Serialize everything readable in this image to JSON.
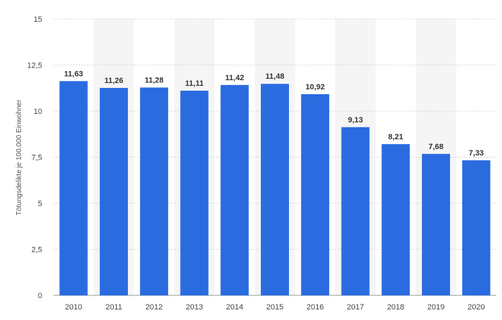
{
  "colors": {
    "bar": "#2a6ce0",
    "band": "#f5f5f5",
    "grid": "#c8c8c8"
  },
  "chart_data": {
    "type": "bar",
    "categories": [
      "2010",
      "2011",
      "2012",
      "2013",
      "2014",
      "2015",
      "2016",
      "2017",
      "2018",
      "2019",
      "2020"
    ],
    "values": [
      11.63,
      11.26,
      11.28,
      11.11,
      11.42,
      11.48,
      10.92,
      9.13,
      8.21,
      7.68,
      7.33
    ],
    "value_labels": [
      "11,63",
      "11,26",
      "11,28",
      "11,11",
      "11,42",
      "11,48",
      "10,92",
      "9,13",
      "8,21",
      "7,68",
      "7,33"
    ],
    "y_ticks": [
      0,
      2.5,
      5,
      7.5,
      10,
      12.5,
      15
    ],
    "y_tick_labels": [
      "0",
      "2,5",
      "5",
      "7,5",
      "10",
      "12,5",
      "15"
    ],
    "ylabel": "Tötungsdelikte je 100.000 Einwohner",
    "xlabel": "",
    "title": "",
    "ylim": [
      0,
      15
    ],
    "grid": true,
    "legend": "none"
  }
}
